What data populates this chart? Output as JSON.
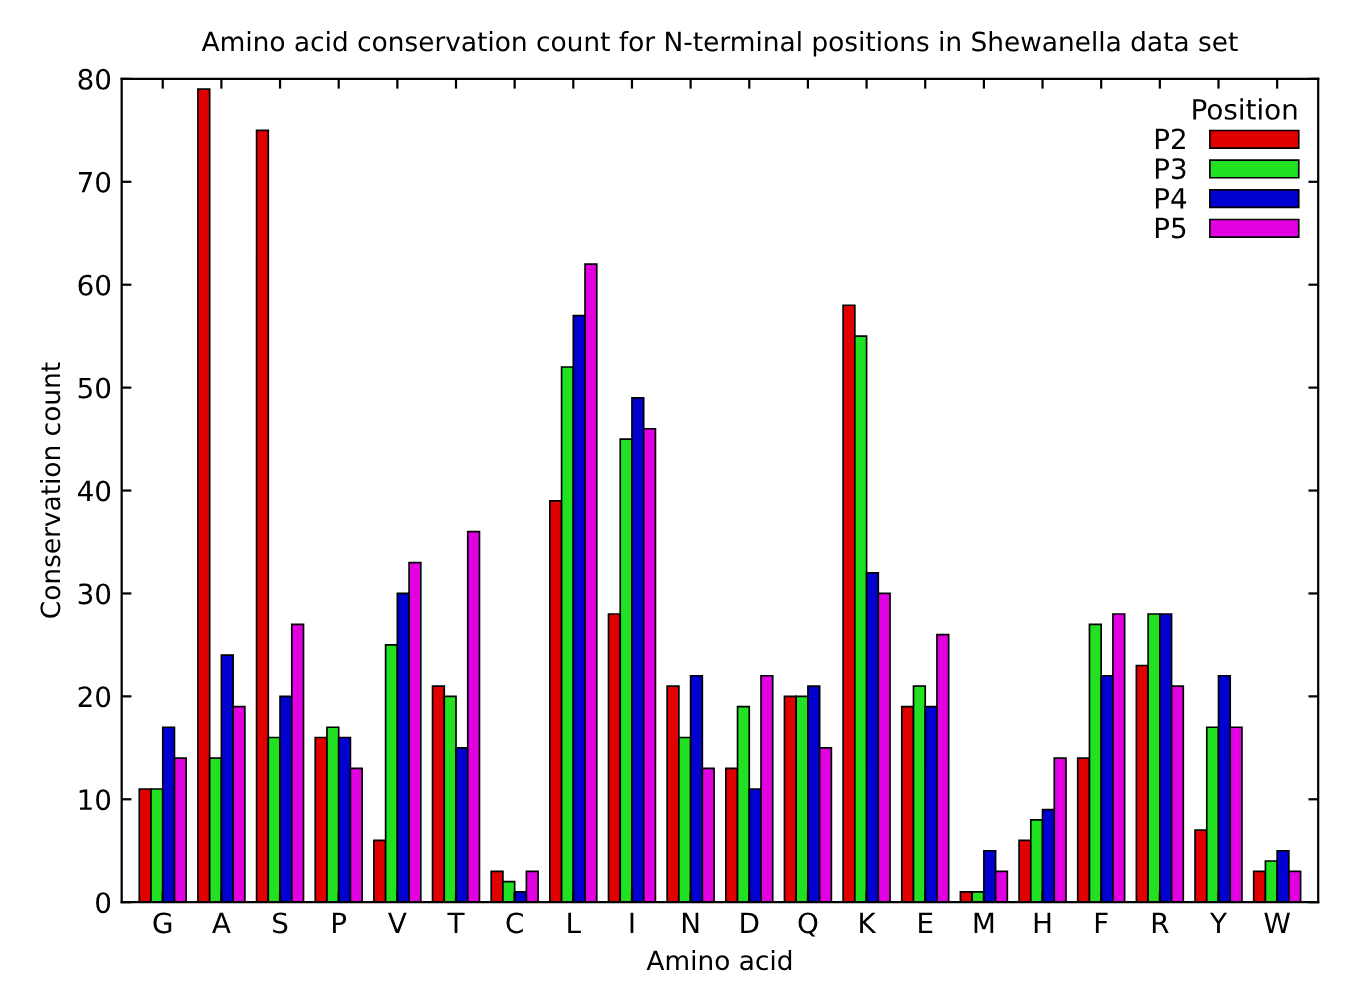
{
  "chart_data": {
    "type": "bar",
    "title": "Amino acid conservation count for N-terminal positions in Shewanella data set",
    "xlabel": "Amino acid",
    "ylabel": "Conservation count",
    "legend_title": "Position",
    "legend": "top right",
    "grid": false,
    "categories": [
      "G",
      "A",
      "S",
      "P",
      "V",
      "T",
      "C",
      "L",
      "I",
      "N",
      "D",
      "Q",
      "K",
      "E",
      "M",
      "H",
      "F",
      "R",
      "Y",
      "W"
    ],
    "ylim": [
      0,
      80
    ],
    "yticks": [
      0,
      10,
      20,
      30,
      40,
      50,
      60,
      70,
      80
    ],
    "series": [
      {
        "name": "P2",
        "color": "#e00000",
        "values": [
          11,
          79,
          75,
          16,
          6,
          21,
          3,
          39,
          28,
          21,
          13,
          20,
          58,
          19,
          1,
          6,
          14,
          23,
          7,
          3
        ]
      },
      {
        "name": "P3",
        "color": "#22e022",
        "values": [
          11,
          14,
          16,
          17,
          25,
          20,
          2,
          52,
          45,
          16,
          19,
          20,
          55,
          21,
          1,
          8,
          27,
          28,
          17,
          4
        ]
      },
      {
        "name": "P4",
        "color": "#0000d0",
        "values": [
          17,
          24,
          20,
          16,
          30,
          15,
          1,
          57,
          49,
          22,
          11,
          21,
          32,
          19,
          5,
          9,
          22,
          28,
          22,
          5
        ]
      },
      {
        "name": "P5",
        "color": "#e000e0",
        "values": [
          14,
          19,
          27,
          13,
          33,
          36,
          3,
          62,
          46,
          13,
          22,
          15,
          30,
          26,
          3,
          14,
          28,
          21,
          17,
          3
        ]
      }
    ]
  }
}
